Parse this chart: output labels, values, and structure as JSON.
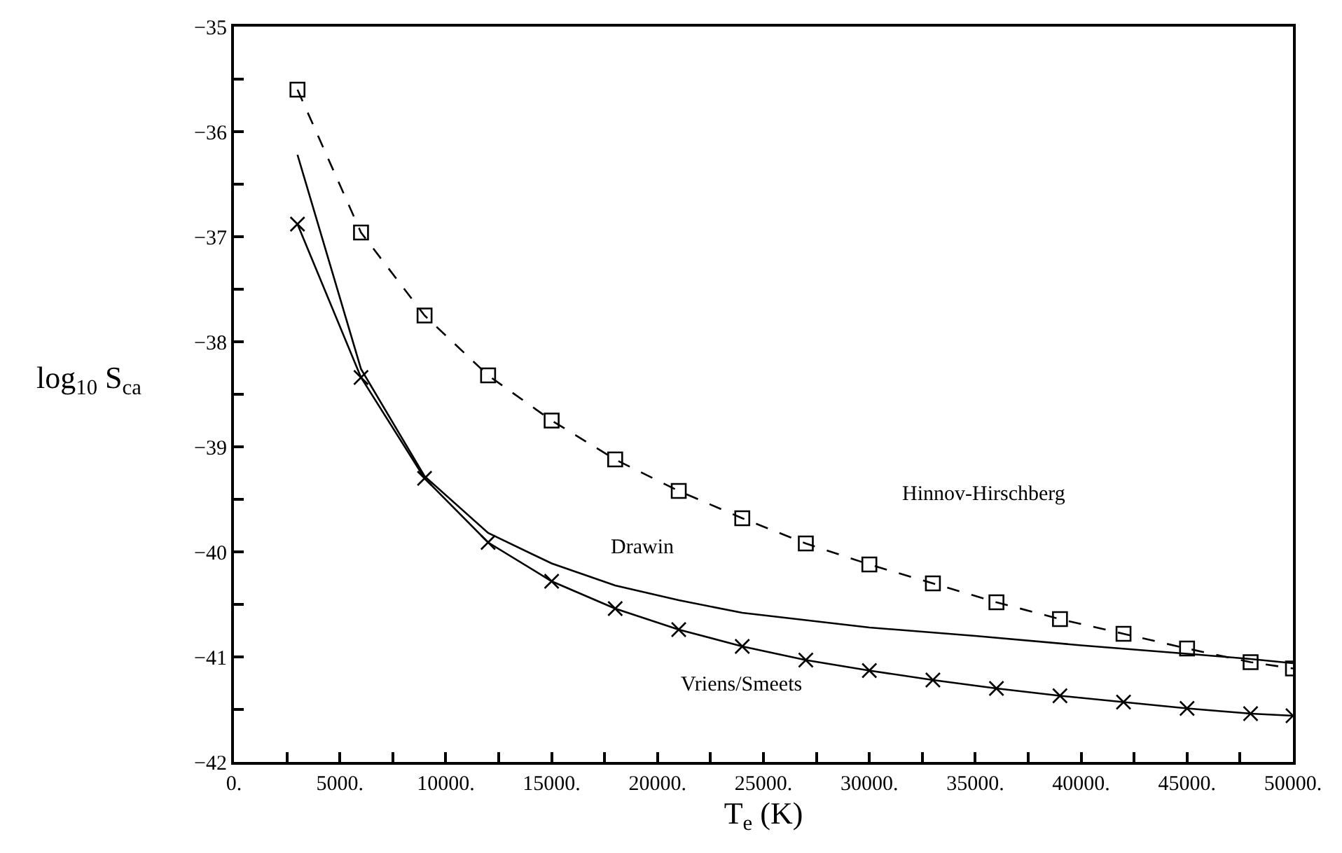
{
  "chart_data": {
    "type": "line",
    "xlabel": "T$_{e}$ (K)",
    "ylabel": "log$_{10}$ S$_{ca}$",
    "xlim": [
      0,
      50000
    ],
    "ylim": [
      -42,
      -35
    ],
    "xticks": [
      {
        "value": 0,
        "label": "0."
      },
      {
        "value": 2500,
        "label": null
      },
      {
        "value": 5000,
        "label": "5000."
      },
      {
        "value": 7500,
        "label": null
      },
      {
        "value": 10000,
        "label": "10000."
      },
      {
        "value": 12500,
        "label": null
      },
      {
        "value": 15000,
        "label": "15000."
      },
      {
        "value": 17500,
        "label": null
      },
      {
        "value": 20000,
        "label": "20000."
      },
      {
        "value": 22500,
        "label": null
      },
      {
        "value": 25000,
        "label": "25000."
      },
      {
        "value": 27500,
        "label": null
      },
      {
        "value": 30000,
        "label": "30000."
      },
      {
        "value": 32500,
        "label": null
      },
      {
        "value": 35000,
        "label": "35000."
      },
      {
        "value": 37500,
        "label": null
      },
      {
        "value": 40000,
        "label": "40000."
      },
      {
        "value": 42500,
        "label": null
      },
      {
        "value": 45000,
        "label": "45000."
      },
      {
        "value": 47500,
        "label": null
      },
      {
        "value": 50000,
        "label": "50000."
      }
    ],
    "yticks": [
      {
        "value": -42,
        "label": "−42"
      },
      {
        "value": -41.5,
        "label": null
      },
      {
        "value": -41,
        "label": "−41"
      },
      {
        "value": -40.5,
        "label": null
      },
      {
        "value": -40,
        "label": "−40"
      },
      {
        "value": -39.5,
        "label": null
      },
      {
        "value": -39,
        "label": "−39"
      },
      {
        "value": -38.5,
        "label": null
      },
      {
        "value": -38,
        "label": "−38"
      },
      {
        "value": -37.5,
        "label": null
      },
      {
        "value": -37,
        "label": "−37"
      },
      {
        "value": -36.5,
        "label": null
      },
      {
        "value": -36,
        "label": "−36"
      },
      {
        "value": -35.5,
        "label": null
      },
      {
        "value": -35,
        "label": "−35"
      }
    ],
    "legend": false,
    "series": [
      {
        "name": "Hinnov-Hirschberg",
        "color": "#000000",
        "marker": "square",
        "line_style": "dashed",
        "x": [
          3000,
          6000,
          9000,
          12000,
          15000,
          18000,
          21000,
          24000,
          27000,
          30000,
          33000,
          36000,
          39000,
          42000,
          45000,
          48000,
          50000
        ],
        "values": [
          -35.6,
          -36.96,
          -37.75,
          -38.32,
          -38.75,
          -39.12,
          -39.42,
          -39.68,
          -39.92,
          -40.12,
          -40.3,
          -40.48,
          -40.64,
          -40.78,
          -40.92,
          -41.05,
          -41.11
        ]
      },
      {
        "name": "Drawin",
        "color": "#000000",
        "marker": "none",
        "line_style": "solid",
        "x": [
          3000,
          6000,
          9000,
          12000,
          15000,
          18000,
          21000,
          24000,
          27000,
          30000,
          35000,
          40000,
          45000,
          48000,
          50000
        ],
        "values": [
          -36.22,
          -38.26,
          -39.28,
          -39.82,
          -40.11,
          -40.32,
          -40.46,
          -40.58,
          -40.65,
          -40.72,
          -40.8,
          -40.89,
          -40.97,
          -41.02,
          -41.06
        ]
      },
      {
        "name": "Vriens/Smeets",
        "color": "#000000",
        "marker": "cross",
        "line_style": "solid",
        "x": [
          3000,
          6000,
          9000,
          12000,
          15000,
          18000,
          21000,
          24000,
          27000,
          30000,
          33000,
          36000,
          39000,
          42000,
          45000,
          48000,
          50000
        ],
        "values": [
          -36.88,
          -38.34,
          -39.3,
          -39.91,
          -40.28,
          -40.54,
          -40.74,
          -40.9,
          -41.03,
          -41.13,
          -41.22,
          -41.3,
          -41.37,
          -41.43,
          -41.49,
          -41.54,
          -41.56
        ]
      }
    ]
  }
}
